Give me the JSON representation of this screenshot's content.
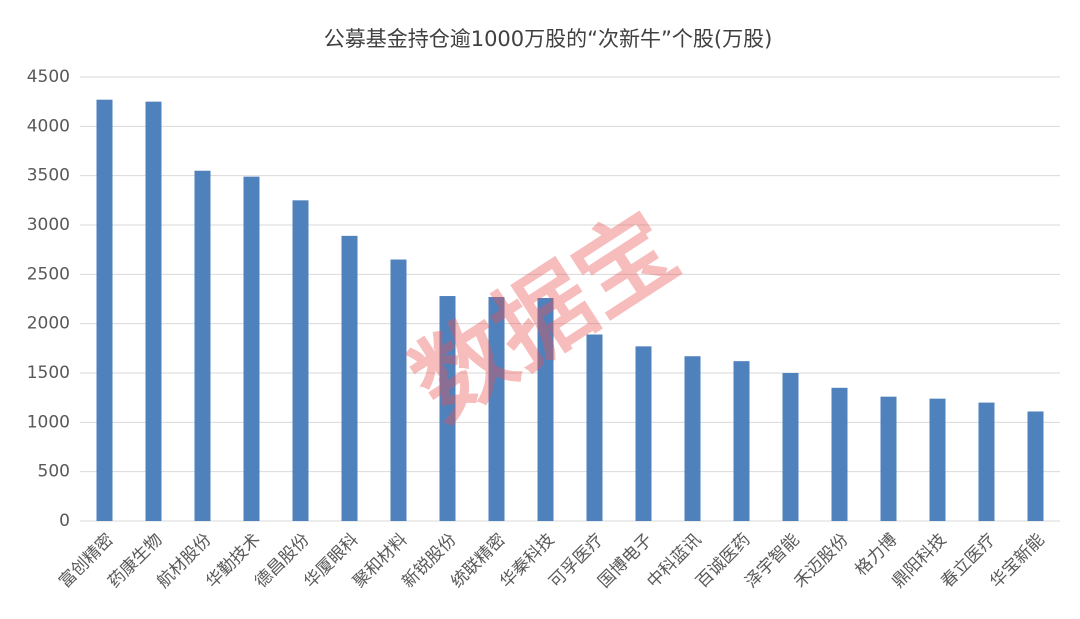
{
  "chart_data": {
    "type": "bar",
    "title": "公募基金持仓逾1000万股的“次新牛”个股(万股)",
    "watermark": "数据宝",
    "categories": [
      "富创精密",
      "药康生物",
      "航材股份",
      "华勤技术",
      "德昌股份",
      "华厦眼科",
      "聚和材料",
      "新锐股份",
      "统联精密",
      "华秦科技",
      "可孚医疗",
      "国博电子",
      "中科蓝讯",
      "百诚医药",
      "泽宇智能",
      "禾迈股份",
      "格力博",
      "鼎阳科技",
      "春立医疗",
      "华宝新能"
    ],
    "values": [
      4270,
      4250,
      3550,
      3490,
      3250,
      2890,
      2650,
      2280,
      2270,
      2260,
      1890,
      1770,
      1670,
      1620,
      1500,
      1350,
      1260,
      1240,
      1200,
      1110
    ],
    "color": "#4f81bd",
    "ylim": [
      0,
      4500
    ],
    "yticks": [
      0,
      500,
      1000,
      1500,
      2000,
      2500,
      3000,
      3500,
      4000,
      4500
    ],
    "grid": true
  }
}
